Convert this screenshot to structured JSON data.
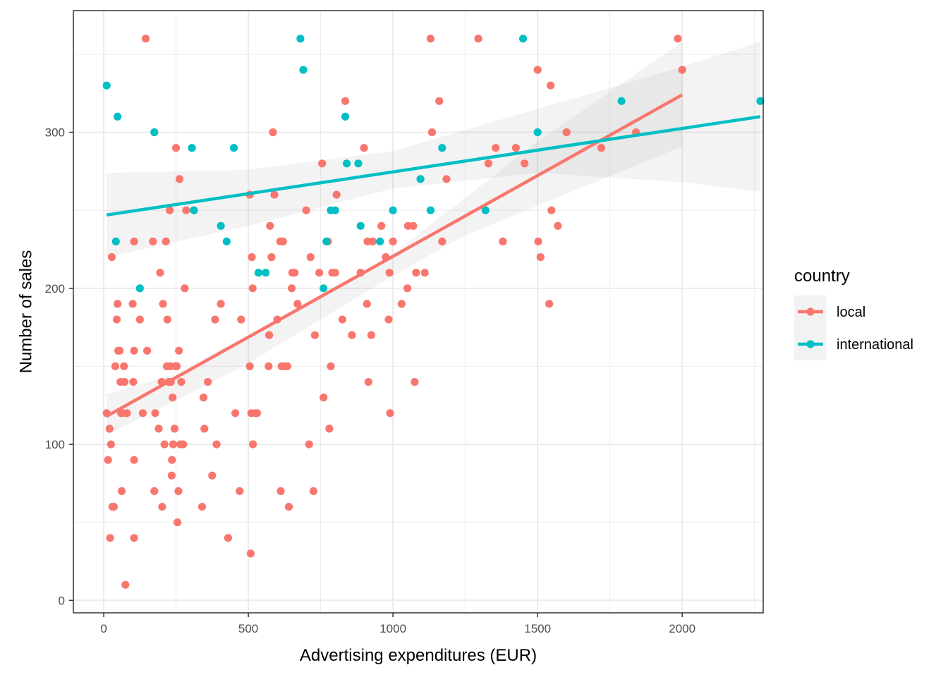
{
  "chart_data": {
    "type": "scatter",
    "title": "",
    "xlabel": "Advertising expenditures (EUR)",
    "ylabel": "Number of sales",
    "xlim": [
      -105,
      2280
    ],
    "ylim": [
      -8,
      378
    ],
    "x_ticks": [
      0,
      500,
      1000,
      1500,
      2000
    ],
    "y_ticks": [
      0,
      100,
      200,
      300
    ],
    "grid": true,
    "legend": {
      "title": "country",
      "position": "right"
    },
    "series": [
      {
        "name": "local",
        "color": "#F8766D",
        "points": [
          [
            10,
            120
          ],
          [
            15,
            90
          ],
          [
            20,
            110
          ],
          [
            22,
            40
          ],
          [
            25,
            100
          ],
          [
            28,
            220
          ],
          [
            30,
            60
          ],
          [
            35,
            60
          ],
          [
            40,
            150
          ],
          [
            45,
            180
          ],
          [
            48,
            190
          ],
          [
            50,
            160
          ],
          [
            55,
            160
          ],
          [
            58,
            140
          ],
          [
            60,
            120
          ],
          [
            62,
            70
          ],
          [
            65,
            120
          ],
          [
            70,
            150
          ],
          [
            72,
            140
          ],
          [
            75,
            10
          ],
          [
            80,
            120
          ],
          [
            100,
            190
          ],
          [
            102,
            140
          ],
          [
            105,
            230
          ],
          [
            105,
            160
          ],
          [
            105,
            90
          ],
          [
            105,
            40
          ],
          [
            125,
            180
          ],
          [
            135,
            120
          ],
          [
            145,
            360
          ],
          [
            150,
            160
          ],
          [
            170,
            230
          ],
          [
            175,
            70
          ],
          [
            178,
            120
          ],
          [
            190,
            110
          ],
          [
            195,
            210
          ],
          [
            200,
            140
          ],
          [
            202,
            60
          ],
          [
            205,
            190
          ],
          [
            210,
            100
          ],
          [
            215,
            230
          ],
          [
            218,
            150
          ],
          [
            220,
            180
          ],
          [
            225,
            140
          ],
          [
            228,
            250
          ],
          [
            230,
            150
          ],
          [
            232,
            140
          ],
          [
            235,
            80
          ],
          [
            236,
            90
          ],
          [
            238,
            130
          ],
          [
            240,
            100
          ],
          [
            245,
            110
          ],
          [
            248,
            150
          ],
          [
            250,
            290
          ],
          [
            252,
            150
          ],
          [
            255,
            50
          ],
          [
            258,
            70
          ],
          [
            260,
            160
          ],
          [
            262,
            270
          ],
          [
            265,
            100
          ],
          [
            268,
            140
          ],
          [
            275,
            100
          ],
          [
            280,
            200
          ],
          [
            285,
            250
          ],
          [
            340,
            60
          ],
          [
            345,
            130
          ],
          [
            348,
            110
          ],
          [
            360,
            140
          ],
          [
            375,
            80
          ],
          [
            385,
            180
          ],
          [
            390,
            100
          ],
          [
            405,
            190
          ],
          [
            430,
            40
          ],
          [
            455,
            120
          ],
          [
            470,
            70
          ],
          [
            475,
            180
          ],
          [
            505,
            260
          ],
          [
            505,
            150
          ],
          [
            508,
            30
          ],
          [
            510,
            120
          ],
          [
            512,
            220
          ],
          [
            515,
            200
          ],
          [
            516,
            100
          ],
          [
            525,
            120
          ],
          [
            530,
            120
          ],
          [
            570,
            150
          ],
          [
            572,
            170
          ],
          [
            575,
            240
          ],
          [
            580,
            220
          ],
          [
            585,
            300
          ],
          [
            590,
            260
          ],
          [
            600,
            180
          ],
          [
            610,
            230
          ],
          [
            612,
            70
          ],
          [
            615,
            150
          ],
          [
            620,
            230
          ],
          [
            625,
            150
          ],
          [
            635,
            150
          ],
          [
            640,
            60
          ],
          [
            650,
            200
          ],
          [
            652,
            210
          ],
          [
            660,
            210
          ],
          [
            670,
            190
          ],
          [
            700,
            250
          ],
          [
            710,
            100
          ],
          [
            715,
            220
          ],
          [
            725,
            70
          ],
          [
            730,
            170
          ],
          [
            745,
            210
          ],
          [
            755,
            280
          ],
          [
            760,
            130
          ],
          [
            775,
            230
          ],
          [
            780,
            110
          ],
          [
            785,
            150
          ],
          [
            790,
            210
          ],
          [
            800,
            210
          ],
          [
            805,
            260
          ],
          [
            825,
            180
          ],
          [
            835,
            320
          ],
          [
            858,
            170
          ],
          [
            888,
            210
          ],
          [
            900,
            290
          ],
          [
            910,
            190
          ],
          [
            912,
            230
          ],
          [
            915,
            140
          ],
          [
            925,
            170
          ],
          [
            930,
            230
          ],
          [
            960,
            240
          ],
          [
            975,
            220
          ],
          [
            985,
            180
          ],
          [
            988,
            210
          ],
          [
            990,
            120
          ],
          [
            1000,
            230
          ],
          [
            1030,
            190
          ],
          [
            1050,
            200
          ],
          [
            1052,
            240
          ],
          [
            1070,
            240
          ],
          [
            1075,
            140
          ],
          [
            1080,
            210
          ],
          [
            1110,
            210
          ],
          [
            1130,
            360
          ],
          [
            1135,
            300
          ],
          [
            1160,
            320
          ],
          [
            1170,
            230
          ],
          [
            1185,
            270
          ],
          [
            1295,
            360
          ],
          [
            1330,
            280
          ],
          [
            1355,
            290
          ],
          [
            1380,
            230
          ],
          [
            1425,
            290
          ],
          [
            1455,
            280
          ],
          [
            1500,
            340
          ],
          [
            1502,
            230
          ],
          [
            1510,
            220
          ],
          [
            1540,
            190
          ],
          [
            1545,
            330
          ],
          [
            1548,
            250
          ],
          [
            1570,
            240
          ],
          [
            1600,
            300
          ],
          [
            1720,
            290
          ],
          [
            1840,
            300
          ],
          [
            1985,
            360
          ],
          [
            2000,
            340
          ]
        ],
        "fit": {
          "x": [
            10,
            2000
          ],
          "y": [
            118,
            324
          ]
        },
        "ci": {
          "x": [
            10,
            250,
            500,
            750,
            1000,
            1250,
            1500,
            1750,
            2000
          ],
          "upper": [
            132,
            145,
            170,
            195,
            222,
            258,
            294,
            326,
            358
          ],
          "lower": [
            106,
            128,
            152,
            180,
            208,
            234,
            253,
            272,
            291
          ]
        }
      },
      {
        "name": "international",
        "color": "#00BFC4",
        "points": [
          [
            10,
            330
          ],
          [
            42,
            230
          ],
          [
            48,
            310
          ],
          [
            125,
            200
          ],
          [
            175,
            300
          ],
          [
            305,
            290
          ],
          [
            312,
            250
          ],
          [
            405,
            240
          ],
          [
            425,
            230
          ],
          [
            450,
            290
          ],
          [
            535,
            210
          ],
          [
            560,
            210
          ],
          [
            680,
            360
          ],
          [
            690,
            340
          ],
          [
            760,
            200
          ],
          [
            770,
            230
          ],
          [
            785,
            250
          ],
          [
            800,
            250
          ],
          [
            835,
            310
          ],
          [
            840,
            280
          ],
          [
            880,
            280
          ],
          [
            888,
            240
          ],
          [
            955,
            230
          ],
          [
            1000,
            250
          ],
          [
            1095,
            270
          ],
          [
            1130,
            250
          ],
          [
            1170,
            290
          ],
          [
            1320,
            250
          ],
          [
            1450,
            360
          ],
          [
            1500,
            300
          ],
          [
            1790,
            320
          ],
          [
            2270,
            320
          ]
        ],
        "fit": {
          "x": [
            10,
            2270
          ],
          "y": [
            247,
            310
          ]
        },
        "ci": {
          "x": [
            10,
            500,
            1000,
            1500,
            2000,
            2270
          ],
          "upper": [
            274,
            276,
            288,
            315,
            342,
            358
          ],
          "lower": [
            220,
            240,
            264,
            274,
            268,
            262
          ]
        }
      }
    ]
  }
}
